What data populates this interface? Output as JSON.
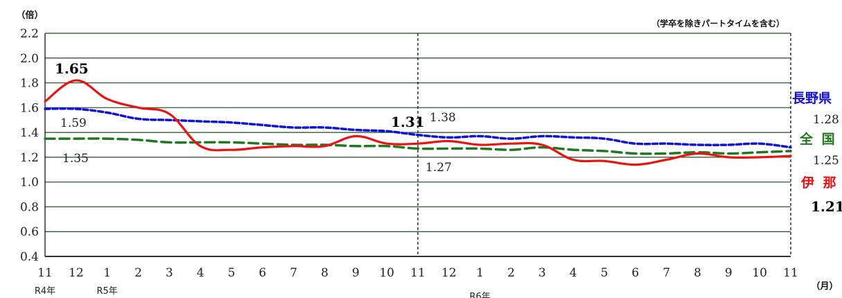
{
  "chart_data": {
    "type": "line",
    "ylabel": "（倍）",
    "xlabel": "（月）",
    "note": "（学卒を除きパートタイムを含む）",
    "ylim": [
      0.4,
      2.2
    ],
    "yticks": [
      "0.4",
      "0.6",
      "0.8",
      "1.0",
      "1.2",
      "1.4",
      "1.6",
      "1.8",
      "2.0",
      "2.2"
    ],
    "categories": [
      "11",
      "12",
      "1",
      "2",
      "3",
      "4",
      "5",
      "6",
      "7",
      "8",
      "9",
      "10",
      "11",
      "12",
      "1",
      "2",
      "3",
      "4",
      "5",
      "6",
      "7",
      "8",
      "9",
      "10",
      "11"
    ],
    "year_labels": [
      {
        "index": 0,
        "text": "R4年"
      },
      {
        "index": 2,
        "text": "R5年"
      },
      {
        "index": 14,
        "text": "R6年"
      }
    ],
    "divider_index": 12,
    "grid": true,
    "series": [
      {
        "name": "長野県",
        "color": "#1010e0",
        "style": "dotted",
        "values": [
          1.59,
          1.59,
          1.56,
          1.51,
          1.5,
          1.49,
          1.48,
          1.46,
          1.44,
          1.44,
          1.42,
          1.41,
          1.38,
          1.36,
          1.37,
          1.35,
          1.37,
          1.36,
          1.35,
          1.31,
          1.31,
          1.3,
          1.3,
          1.31,
          1.28
        ]
      },
      {
        "name": "全 国",
        "color": "#227722",
        "style": "dashed",
        "values": [
          1.35,
          1.35,
          1.35,
          1.34,
          1.32,
          1.32,
          1.32,
          1.31,
          1.3,
          1.3,
          1.29,
          1.29,
          1.27,
          1.27,
          1.27,
          1.26,
          1.28,
          1.26,
          1.25,
          1.23,
          1.23,
          1.24,
          1.23,
          1.24,
          1.25
        ]
      },
      {
        "name": "伊 那",
        "color": "#ee1111",
        "style": "solid",
        "values": [
          1.65,
          1.82,
          1.67,
          1.6,
          1.55,
          1.29,
          1.26,
          1.28,
          1.29,
          1.29,
          1.37,
          1.31,
          1.31,
          1.33,
          1.3,
          1.31,
          1.3,
          1.18,
          1.17,
          1.14,
          1.18,
          1.23,
          1.2,
          1.2,
          1.21
        ]
      }
    ],
    "annotations": [
      {
        "text": "1.65",
        "bold": true
      },
      {
        "text": "1.59",
        "bold": false
      },
      {
        "text": "1.35",
        "bold": false
      },
      {
        "text": "1.31",
        "bold": true
      },
      {
        "text": "1.38",
        "bold": false
      },
      {
        "text": "1.27",
        "bold": false
      },
      {
        "text": "1.28",
        "bold": false
      },
      {
        "text": "1.25",
        "bold": false
      },
      {
        "text": "1.21",
        "bold": true
      }
    ]
  }
}
